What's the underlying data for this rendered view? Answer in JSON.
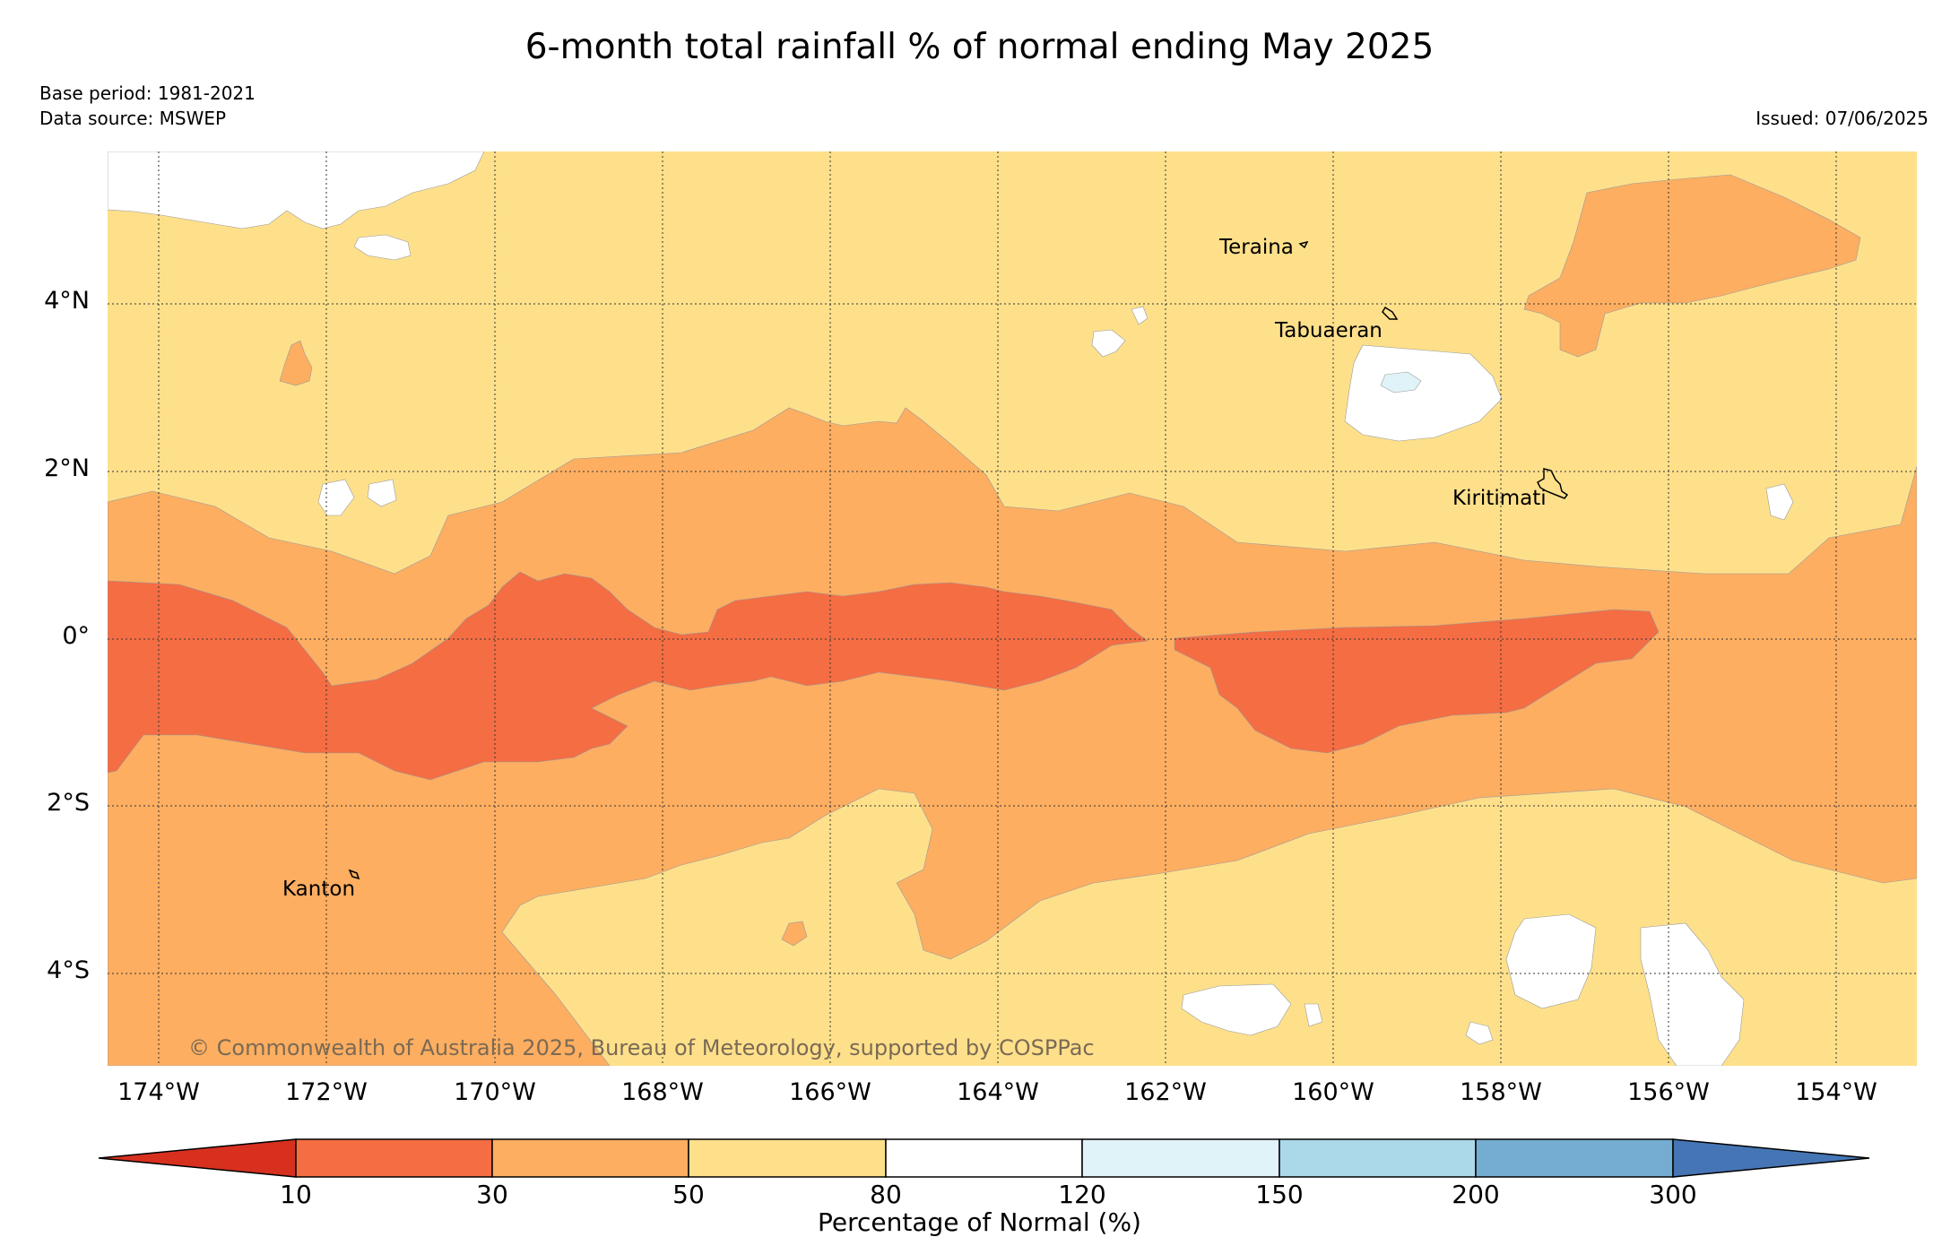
{
  "title": "6-month total rainfall % of normal ending May 2025",
  "base_period": "Base period: 1981-2021",
  "data_source": "Data source: MSWEP",
  "issued": "Issued: 07/06/2025",
  "copyright": "© Commonwealth of Australia 2025, Bureau of Meteorology, supported by COSPPac",
  "lat_labels": [
    "4°N",
    "2°N",
    "0°",
    "2°S",
    "4°S"
  ],
  "lon_labels": [
    "174°W",
    "172°W",
    "170°W",
    "168°W",
    "166°W",
    "164°W",
    "162°W",
    "160°W",
    "158°W",
    "156°W",
    "154°W"
  ],
  "places": [
    "Teraina",
    "Tabuaeran",
    "Kiritimati",
    "Kanton"
  ],
  "colorbar": {
    "label": "Percentage of Normal (%)",
    "ticks": [
      "10",
      "30",
      "50",
      "80",
      "120",
      "150",
      "200",
      "300"
    ],
    "colors": [
      "#d7301f",
      "#f46d43",
      "#fdae61",
      "#fee08b",
      "#ffffff",
      "#e0f3f8",
      "#abd9e9",
      "#74add1",
      "#4575b4"
    ]
  }
}
